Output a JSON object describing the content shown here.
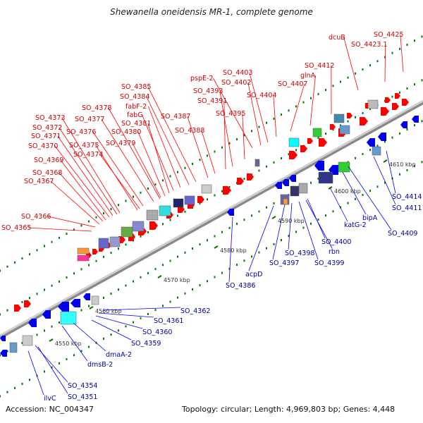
{
  "title": "Shewanella oneidensis MR-1, complete genome",
  "footer": {
    "accession": "Accession: NC_004347",
    "topology": "Topology: circular; Length: 4,969,803 bp; Genes: 4,448"
  },
  "colors": {
    "forward": "#ff0000",
    "reverse": "#0000ee",
    "backbone": "#aaaaaa",
    "tick": "#007700",
    "label_forward": "#cc0000",
    "label_reverse": "#000099"
  },
  "scale_labels": [
    "4550 kbp",
    "4560 kbp",
    "4570 kbp",
    "4580 kbp",
    "4590 kbp",
    "4600 kbp",
    "4610 kbp"
  ],
  "forward_labels": [
    "SO_4365",
    "SO_4366",
    "SO_4367",
    "SO_4368",
    "SO_4369",
    "SO_4370",
    "SO_4371",
    "SO_4372",
    "SO_4373",
    "SO_4374",
    "SO_4375",
    "SO_4376",
    "SO_4377",
    "SO_4378",
    "SO_4379",
    "SO_4380",
    "SO_4381",
    "fabG",
    "fabF-2",
    "SO_4384",
    "SO_4385",
    "SO_4387",
    "SO_4388",
    "SO_4391",
    "SO_4393",
    "SO_4395",
    "pspE-2",
    "SO_4402",
    "SO_4403",
    "SO_4404",
    "SO_4407",
    "glnA",
    "SO_4412",
    "dcuB",
    "SO_4423.1",
    "SO_4425"
  ],
  "reverse_labels": [
    "ilvC",
    "SO_4351",
    "SO_4354",
    "dmsB-2",
    "dmaA-2",
    "SO_4359",
    "SO_4360",
    "SO_4361",
    "SO_4362",
    "SO_4386",
    "acpD",
    "SO_4397",
    "SO_4398",
    "SO_4399",
    "rbn",
    "SO_4400",
    "katG-2",
    "SO_4409",
    "bipA",
    "SO_4411",
    "SO_4414"
  ]
}
